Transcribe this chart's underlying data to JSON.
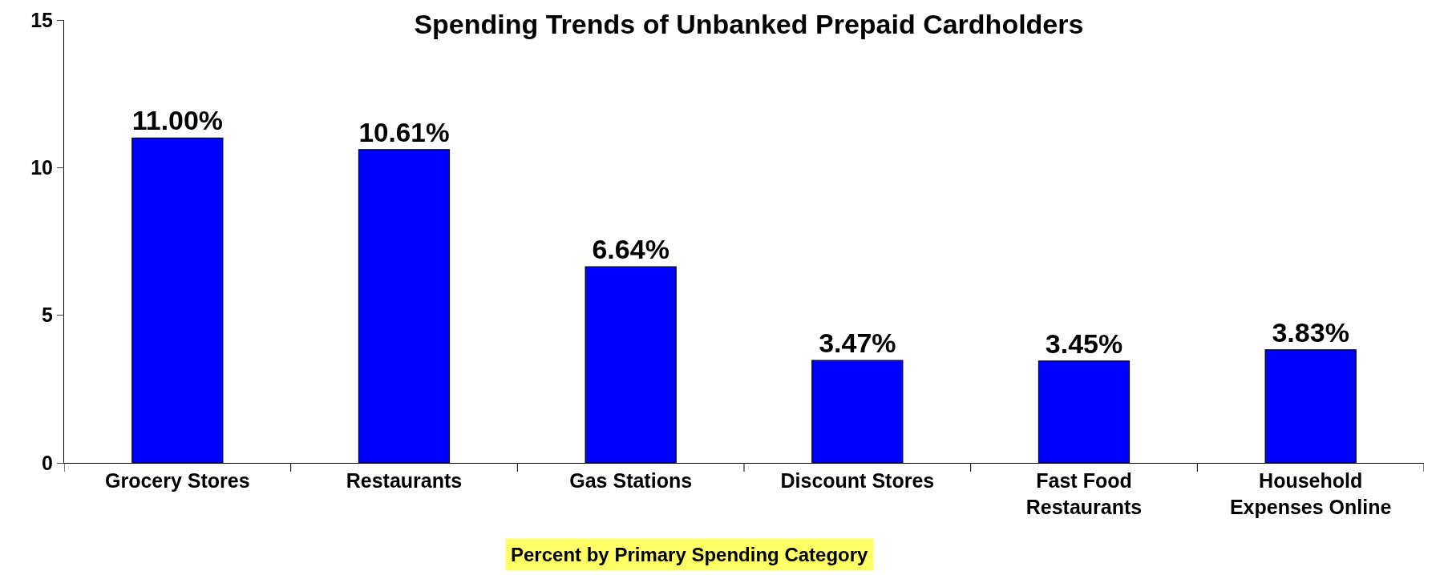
{
  "chart_data": {
    "type": "bar",
    "title": "Spending Trends of Unbanked Prepaid Cardholders",
    "xlabel": "Percent by Primary Spending Category",
    "categories": [
      "Grocery Stores",
      "Restaurants",
      "Gas Stations",
      "Discount Stores",
      "Fast Food Restaurants",
      "Household Expenses Online"
    ],
    "values": [
      11.0,
      10.61,
      6.64,
      3.47,
      3.45,
      3.83
    ],
    "value_labels": [
      "11.00%",
      "10.61%",
      "6.64%",
      "3.47%",
      "3.45%",
      "3.83%"
    ],
    "color": "#0000ff",
    "ylim": [
      0,
      15
    ],
    "yticks": [
      0,
      5,
      10,
      15
    ],
    "grid": false
  }
}
